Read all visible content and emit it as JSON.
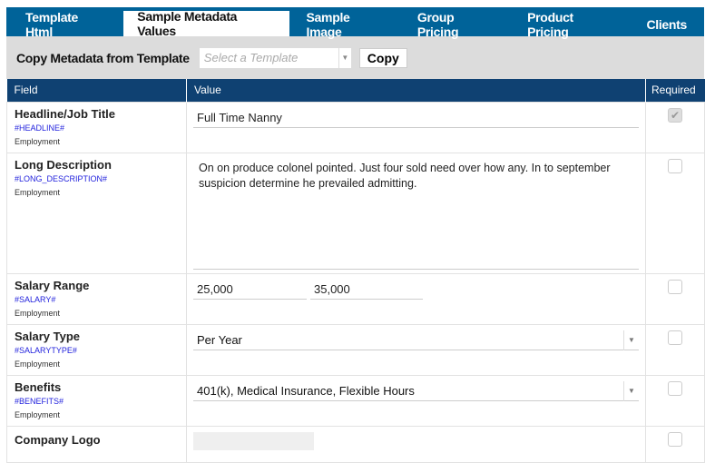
{
  "tabs": [
    {
      "label": "Template Html"
    },
    {
      "label": "Sample Metadata Values",
      "active": true
    },
    {
      "label": "Sample Image"
    },
    {
      "label": "Group Pricing"
    },
    {
      "label": "Product Pricing"
    },
    {
      "label": "Clients"
    }
  ],
  "toolbar": {
    "label": "Copy Metadata from Template",
    "select_placeholder": "Select a Template",
    "copy_label": "Copy"
  },
  "table": {
    "headers": [
      "Field",
      "Value",
      "Required"
    ],
    "rows": [
      {
        "name": "Headline/Job Title",
        "token": "#HEADLINE#",
        "category": "Employment",
        "value": "Full Time Nanny",
        "required": true
      },
      {
        "name": "Long Description",
        "token": "#LONG_DESCRIPTION#",
        "category": "Employment",
        "value": "On on produce colonel pointed. Just four sold need over how any. In to september suspicion determine he prevailed admitting.",
        "required": false
      },
      {
        "name": "Salary Range",
        "token": "#SALARY#",
        "category": "Employment",
        "min": "25,000",
        "max": "35,000",
        "required": false
      },
      {
        "name": "Salary Type",
        "token": "#SALARYTYPE#",
        "category": "Employment",
        "value": "Per Year",
        "required": false
      },
      {
        "name": "Benefits",
        "token": "#BENEFITS#",
        "category": "Employment",
        "value": "401(k), Medical Insurance, Flexible Hours",
        "required": false
      },
      {
        "name": "Company Logo",
        "required": false
      }
    ]
  },
  "colors": {
    "tabbar": "#006399",
    "header": "#0f4172",
    "token": "#2222dd"
  }
}
